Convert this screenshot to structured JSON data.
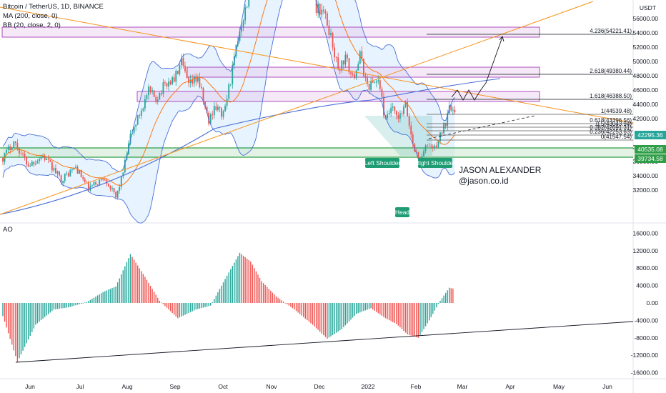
{
  "legend": {
    "symbol": "Bitcoin / TetherUS, 1D, BINANCE",
    "ma": "MA (200, close, 0)",
    "bb": "BB (20, close, 2, 0)",
    "ao": "AO"
  },
  "axis": {
    "currency": "USDT",
    "price_ticks": [
      "56000.00",
      "54000.00",
      "52000.00",
      "50000.00",
      "48000.00",
      "46000.00",
      "44000.00",
      "42000.00",
      "38000.00",
      "36000.00",
      "34000.00",
      "32000.00"
    ],
    "ao_ticks": [
      "16000.00",
      "12000.00",
      "8000.00",
      "4000.00",
      "0.00",
      "-4000.00",
      "-8000.00",
      "-12000.00",
      "-16000.00"
    ],
    "time_ticks": [
      "Jun",
      "Jul",
      "Aug",
      "Sep",
      "Oct",
      "Nov",
      "Dec",
      "2022",
      "Feb",
      "Mar",
      "Apr",
      "May",
      "Jun"
    ]
  },
  "price_tags": [
    {
      "label": "42295.36",
      "color": "#26a69a"
    },
    {
      "label": "40535.08",
      "color": "#2e9e47"
    },
    {
      "label": "39734.58",
      "color": "#2e9e47"
    }
  ],
  "fib_labels": [
    {
      "text": "4.236(54221.41)"
    },
    {
      "text": "2.618(49380.44)"
    },
    {
      "text": "1.618(46388.50)"
    },
    {
      "text": "1(44539.48)"
    },
    {
      "text": "0.618(43396.56)"
    },
    {
      "text": "0.5(43043.94)"
    },
    {
      "text": "0.382(42691.31)"
    },
    {
      "text": "0.236(42253.63)"
    },
    {
      "text": "0(41547.54)"
    }
  ],
  "pattern_labels": {
    "left_shoulder": "Left Shoulder",
    "right_shoulder": "Right Shoulder",
    "head": "Head"
  },
  "author": {
    "name": "JASON ALEXANDER",
    "handle": "@jason.co.id"
  },
  "colors": {
    "up": "#26a69a",
    "down": "#ef5350",
    "bb": "#4a6fd8",
    "ma": "#f7931a",
    "fib_box_border": "#9c27b0",
    "support": "#2e9e47"
  }
}
